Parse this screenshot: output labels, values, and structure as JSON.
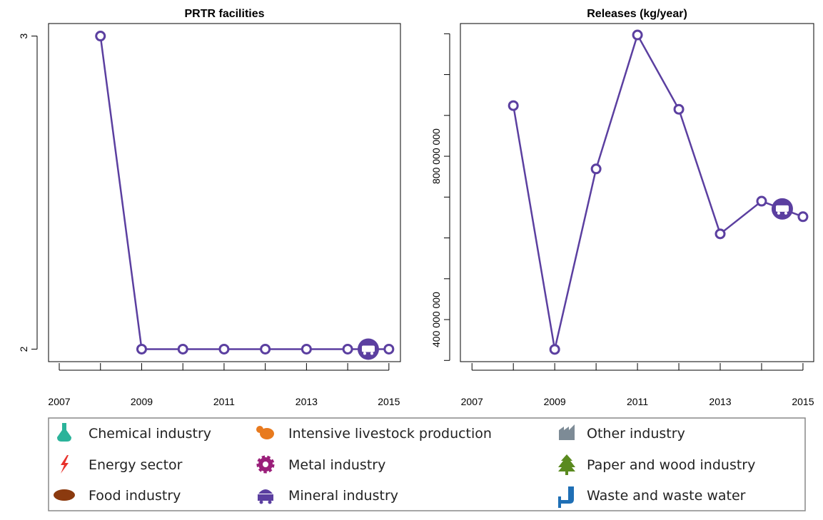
{
  "chart_data": [
    {
      "type": "line",
      "title": "PRTR facilities",
      "x": [
        2008,
        2009,
        2010,
        2011,
        2012,
        2013,
        2014,
        2015
      ],
      "series": [
        {
          "color": "#5b3fa0",
          "values": [
            3,
            2,
            2,
            2,
            2,
            2,
            2,
            2
          ]
        }
      ],
      "xlim": [
        2006.74,
        2015.28
      ],
      "xticks": [
        2007,
        2009,
        2011,
        2013,
        2015
      ],
      "xminor_ticks": [
        2008,
        2010,
        2012,
        2014
      ],
      "ylim": [
        1.96,
        3.04
      ],
      "yticks": [
        2,
        3
      ]
    },
    {
      "type": "line",
      "title": "Releases (kg/year)",
      "x": [
        2008,
        2009,
        2010,
        2011,
        2012,
        2013,
        2014,
        2015
      ],
      "series": [
        {
          "color": "#5b3fa0",
          "values": [
            924000000,
            327000000,
            769000000,
            1097000000,
            915000000,
            610000000,
            690000000,
            652000000
          ]
        }
      ],
      "xlim": [
        2006.72,
        2015.26
      ],
      "xticks": [
        2007,
        2009,
        2011,
        2013,
        2015
      ],
      "xminor_ticks": [
        2008,
        2010,
        2012,
        2014
      ],
      "ylim": [
        297000000,
        1125000000
      ],
      "yticks": [
        {
          "value": 400000000,
          "label": "400 000 000"
        },
        {
          "value": 800000000,
          "label": "800 000 000"
        }
      ],
      "yminor_ticks": [
        300000000,
        500000000,
        600000000,
        700000000,
        900000000,
        1000000000,
        1100000000
      ]
    }
  ],
  "legend": {
    "items": [
      "Chemical industry",
      "Energy sector",
      "Food industry",
      "Intensive livestock production",
      "Metal industry",
      "Mineral industry",
      "Other industry",
      "Paper and wood industry",
      "Waste and waste water"
    ]
  }
}
